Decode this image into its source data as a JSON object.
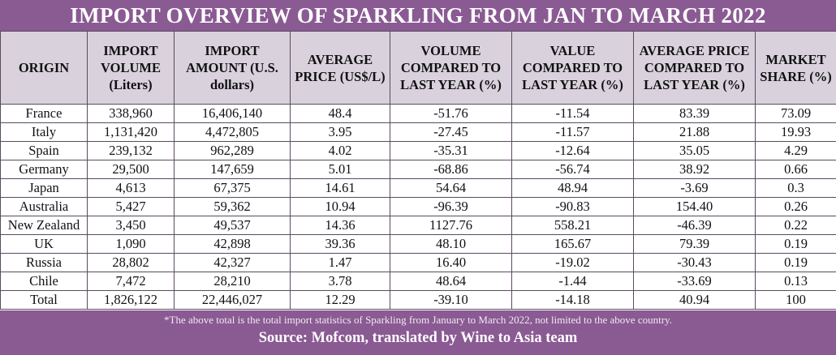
{
  "chart_data": {
    "type": "table",
    "title": "IMPORT OVERVIEW OF SPARKLING FROM JAN TO MARCH 2022",
    "columns": [
      "ORIGIN",
      "IMPORT VOLUME (Liters)",
      "IMPORT AMOUNT (U.S. dollars)",
      "AVERAGE PRICE (US$/L)",
      "VOLUME COMPARED TO LAST YEAR (%)",
      "VALUE COMPARED TO LAST YEAR (%)",
      "AVERAGE PRICE COMPARED TO LAST YEAR (%)",
      "MARKET SHARE (%)"
    ],
    "rows": [
      [
        "France",
        "338,960",
        "16,406,140",
        "48.4",
        "-51.76",
        "-11.54",
        "83.39",
        "73.09"
      ],
      [
        "Italy",
        "1,131,420",
        "4,472,805",
        "3.95",
        "-27.45",
        "-11.57",
        "21.88",
        "19.93"
      ],
      [
        "Spain",
        "239,132",
        "962,289",
        "4.02",
        "-35.31",
        "-12.64",
        "35.05",
        "4.29"
      ],
      [
        "Germany",
        "29,500",
        "147,659",
        "5.01",
        "-68.86",
        "-56.74",
        "38.92",
        "0.66"
      ],
      [
        "Japan",
        "4,613",
        "67,375",
        "14.61",
        "54.64",
        "48.94",
        "-3.69",
        "0.3"
      ],
      [
        "Australia",
        "5,427",
        "59,362",
        "10.94",
        "-96.39",
        "-90.83",
        "154.40",
        "0.26"
      ],
      [
        "New Zealand",
        "3,450",
        "49,537",
        "14.36",
        "1127.76",
        "558.21",
        "-46.39",
        "0.22"
      ],
      [
        "UK",
        "1,090",
        "42,898",
        "39.36",
        "48.10",
        "165.67",
        "79.39",
        "0.19"
      ],
      [
        "Russia",
        "28,802",
        "42,327",
        "1.47",
        "16.40",
        "-19.02",
        "-30.43",
        "0.19"
      ],
      [
        "Chile",
        "7,472",
        "28,210",
        "3.78",
        "48.64",
        "-1.44",
        "-33.69",
        "0.13"
      ],
      [
        "Total",
        "1,826,122",
        "22,446,027",
        "12.29",
        "-39.10",
        "-14.18",
        "40.94",
        "100"
      ]
    ],
    "note": "*The above total is the total import statistics of Sparkling from January to March 2022, not limited to the above country.",
    "source": "Source: Mofcom, translated by Wine to Asia team"
  },
  "colors": {
    "banner": "#8a5a93",
    "header_bg": "#d9d2dd",
    "border": "#5a4a60"
  }
}
